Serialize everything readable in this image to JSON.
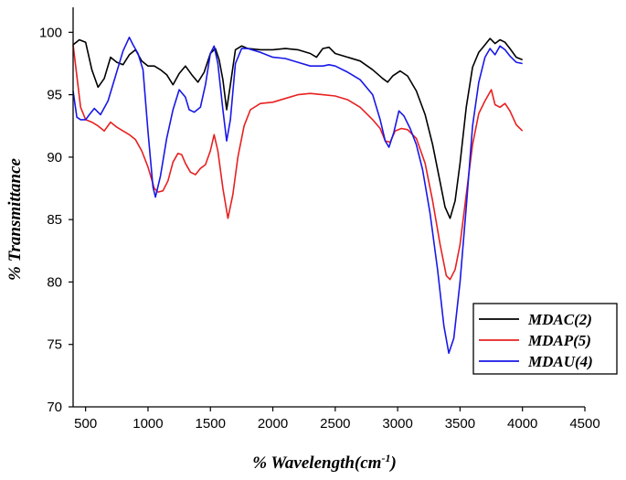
{
  "chart_data": {
    "type": "line",
    "title": "",
    "xlabel": "% Wavelength(cm",
    "xlabel_sup": "-1",
    "xlabel_suffix": ")",
    "ylabel": "% Transmittance",
    "xlim": [
      400,
      4500
    ],
    "ylim": [
      70,
      102
    ],
    "x_ticks": [
      "500",
      "1000",
      "1500",
      "2000",
      "2500",
      "3000",
      "3500",
      "4000",
      "4500"
    ],
    "y_ticks": [
      "70",
      "75",
      "80",
      "85",
      "90",
      "95",
      "100"
    ],
    "grid": false,
    "legend_position": "bottom-right",
    "series": [
      {
        "name": "MDAC(2)",
        "color": "#000000",
        "points": [
          [
            400,
            99.0
          ],
          [
            450,
            99.4
          ],
          [
            500,
            99.2
          ],
          [
            550,
            97.0
          ],
          [
            600,
            95.6
          ],
          [
            650,
            96.3
          ],
          [
            700,
            98.0
          ],
          [
            750,
            97.6
          ],
          [
            800,
            97.4
          ],
          [
            850,
            98.2
          ],
          [
            900,
            98.6
          ],
          [
            950,
            97.7
          ],
          [
            1000,
            97.3
          ],
          [
            1050,
            97.3
          ],
          [
            1100,
            97.0
          ],
          [
            1150,
            96.6
          ],
          [
            1200,
            95.8
          ],
          [
            1250,
            96.7
          ],
          [
            1300,
            97.3
          ],
          [
            1350,
            96.6
          ],
          [
            1400,
            96.0
          ],
          [
            1450,
            96.8
          ],
          [
            1500,
            98.3
          ],
          [
            1540,
            98.7
          ],
          [
            1570,
            97.8
          ],
          [
            1600,
            96.2
          ],
          [
            1630,
            93.8
          ],
          [
            1660,
            95.8
          ],
          [
            1700,
            98.6
          ],
          [
            1750,
            98.9
          ],
          [
            1800,
            98.7
          ],
          [
            1900,
            98.6
          ],
          [
            2000,
            98.6
          ],
          [
            2100,
            98.7
          ],
          [
            2200,
            98.6
          ],
          [
            2300,
            98.3
          ],
          [
            2350,
            98.0
          ],
          [
            2400,
            98.7
          ],
          [
            2450,
            98.8
          ],
          [
            2500,
            98.3
          ],
          [
            2600,
            98.0
          ],
          [
            2700,
            97.7
          ],
          [
            2800,
            97.0
          ],
          [
            2880,
            96.3
          ],
          [
            2920,
            96.0
          ],
          [
            2960,
            96.5
          ],
          [
            3020,
            96.9
          ],
          [
            3080,
            96.5
          ],
          [
            3150,
            95.3
          ],
          [
            3220,
            93.4
          ],
          [
            3280,
            91.0
          ],
          [
            3340,
            88.0
          ],
          [
            3380,
            86.0
          ],
          [
            3420,
            85.1
          ],
          [
            3460,
            86.5
          ],
          [
            3500,
            89.5
          ],
          [
            3550,
            94.0
          ],
          [
            3600,
            97.2
          ],
          [
            3650,
            98.4
          ],
          [
            3700,
            99.0
          ],
          [
            3740,
            99.5
          ],
          [
            3780,
            99.1
          ],
          [
            3820,
            99.4
          ],
          [
            3860,
            99.2
          ],
          [
            3900,
            98.7
          ],
          [
            3950,
            98.0
          ],
          [
            4000,
            97.8
          ]
        ]
      },
      {
        "name": "MDAP(5)",
        "color": "#e82020",
        "points": [
          [
            400,
            99.0
          ],
          [
            430,
            96.5
          ],
          [
            460,
            94.0
          ],
          [
            500,
            93.0
          ],
          [
            550,
            92.8
          ],
          [
            600,
            92.5
          ],
          [
            650,
            92.1
          ],
          [
            700,
            92.8
          ],
          [
            750,
            92.4
          ],
          [
            800,
            92.1
          ],
          [
            850,
            91.8
          ],
          [
            900,
            91.4
          ],
          [
            950,
            90.5
          ],
          [
            1000,
            89.2
          ],
          [
            1050,
            87.5
          ],
          [
            1080,
            87.2
          ],
          [
            1120,
            87.3
          ],
          [
            1160,
            88.1
          ],
          [
            1200,
            89.6
          ],
          [
            1240,
            90.3
          ],
          [
            1270,
            90.2
          ],
          [
            1300,
            89.5
          ],
          [
            1340,
            88.8
          ],
          [
            1380,
            88.6
          ],
          [
            1420,
            89.1
          ],
          [
            1460,
            89.4
          ],
          [
            1500,
            90.5
          ],
          [
            1530,
            91.8
          ],
          [
            1560,
            90.5
          ],
          [
            1600,
            87.5
          ],
          [
            1640,
            85.1
          ],
          [
            1680,
            87.0
          ],
          [
            1720,
            90.0
          ],
          [
            1770,
            92.5
          ],
          [
            1820,
            93.8
          ],
          [
            1900,
            94.3
          ],
          [
            2000,
            94.4
          ],
          [
            2100,
            94.7
          ],
          [
            2200,
            95.0
          ],
          [
            2300,
            95.1
          ],
          [
            2400,
            95.0
          ],
          [
            2500,
            94.9
          ],
          [
            2600,
            94.6
          ],
          [
            2700,
            94.0
          ],
          [
            2800,
            93.0
          ],
          [
            2860,
            92.3
          ],
          [
            2900,
            91.3
          ],
          [
            2940,
            91.2
          ],
          [
            2980,
            92.1
          ],
          [
            3030,
            92.3
          ],
          [
            3080,
            92.2
          ],
          [
            3150,
            91.5
          ],
          [
            3220,
            89.5
          ],
          [
            3280,
            86.5
          ],
          [
            3340,
            83.0
          ],
          [
            3390,
            80.5
          ],
          [
            3420,
            80.2
          ],
          [
            3460,
            81.0
          ],
          [
            3500,
            83.0
          ],
          [
            3550,
            87.0
          ],
          [
            3600,
            91.0
          ],
          [
            3650,
            93.5
          ],
          [
            3700,
            94.5
          ],
          [
            3750,
            95.4
          ],
          [
            3780,
            94.2
          ],
          [
            3820,
            94.0
          ],
          [
            3860,
            94.3
          ],
          [
            3900,
            93.7
          ],
          [
            3950,
            92.6
          ],
          [
            4000,
            92.1
          ]
        ]
      },
      {
        "name": "MDAU(4)",
        "color": "#1818e8",
        "points": [
          [
            400,
            95.3
          ],
          [
            430,
            93.2
          ],
          [
            460,
            93.0
          ],
          [
            500,
            93.0
          ],
          [
            530,
            93.4
          ],
          [
            570,
            93.9
          ],
          [
            620,
            93.4
          ],
          [
            680,
            94.5
          ],
          [
            740,
            96.5
          ],
          [
            800,
            98.5
          ],
          [
            850,
            99.6
          ],
          [
            880,
            99.0
          ],
          [
            920,
            98.3
          ],
          [
            960,
            97.0
          ],
          [
            1000,
            92.0
          ],
          [
            1040,
            87.6
          ],
          [
            1060,
            86.8
          ],
          [
            1100,
            88.5
          ],
          [
            1150,
            91.5
          ],
          [
            1200,
            93.8
          ],
          [
            1250,
            95.4
          ],
          [
            1300,
            94.8
          ],
          [
            1330,
            93.8
          ],
          [
            1370,
            93.6
          ],
          [
            1420,
            94.0
          ],
          [
            1460,
            95.8
          ],
          [
            1500,
            98.3
          ],
          [
            1530,
            98.9
          ],
          [
            1560,
            97.5
          ],
          [
            1600,
            93.8
          ],
          [
            1630,
            91.3
          ],
          [
            1660,
            93.0
          ],
          [
            1700,
            97.5
          ],
          [
            1750,
            98.7
          ],
          [
            1800,
            98.7
          ],
          [
            1900,
            98.4
          ],
          [
            2000,
            98.0
          ],
          [
            2100,
            97.9
          ],
          [
            2200,
            97.6
          ],
          [
            2300,
            97.3
          ],
          [
            2400,
            97.3
          ],
          [
            2450,
            97.4
          ],
          [
            2500,
            97.3
          ],
          [
            2600,
            96.8
          ],
          [
            2700,
            96.2
          ],
          [
            2800,
            95.0
          ],
          [
            2860,
            93.0
          ],
          [
            2900,
            91.3
          ],
          [
            2930,
            90.8
          ],
          [
            2970,
            92.0
          ],
          [
            3010,
            93.7
          ],
          [
            3050,
            93.3
          ],
          [
            3100,
            92.3
          ],
          [
            3150,
            91.0
          ],
          [
            3200,
            89.0
          ],
          [
            3260,
            85.5
          ],
          [
            3320,
            81.0
          ],
          [
            3370,
            76.5
          ],
          [
            3410,
            74.3
          ],
          [
            3450,
            75.5
          ],
          [
            3500,
            80.0
          ],
          [
            3550,
            86.0
          ],
          [
            3600,
            92.5
          ],
          [
            3650,
            96.0
          ],
          [
            3700,
            98.0
          ],
          [
            3740,
            98.7
          ],
          [
            3780,
            98.2
          ],
          [
            3820,
            98.9
          ],
          [
            3860,
            98.6
          ],
          [
            3900,
            98.1
          ],
          [
            3950,
            97.6
          ],
          [
            4000,
            97.5
          ]
        ]
      }
    ]
  }
}
